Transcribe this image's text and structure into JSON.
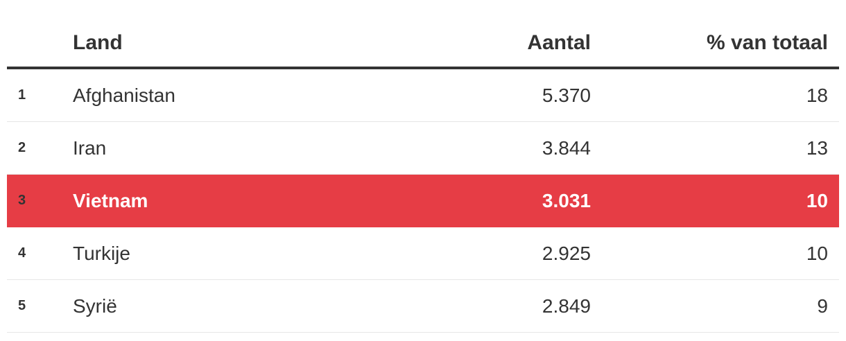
{
  "chart_data": {
    "type": "table",
    "columns": [
      "",
      "Land",
      "Aantal",
      "% van totaal"
    ],
    "highlight_color": "#e63d45",
    "rows": [
      {
        "rank": "1",
        "land": "Afghanistan",
        "aantal": "5.370",
        "pct": "18",
        "highlight": false
      },
      {
        "rank": "2",
        "land": "Iran",
        "aantal": "3.844",
        "pct": "13",
        "highlight": false
      },
      {
        "rank": "3",
        "land": "Vietnam",
        "aantal": "3.031",
        "pct": "10",
        "highlight": true
      },
      {
        "rank": "4",
        "land": "Turkije",
        "aantal": "2.925",
        "pct": "10",
        "highlight": false
      },
      {
        "rank": "5",
        "land": "Syrië",
        "aantal": "2.849",
        "pct": "9",
        "highlight": false
      }
    ]
  }
}
